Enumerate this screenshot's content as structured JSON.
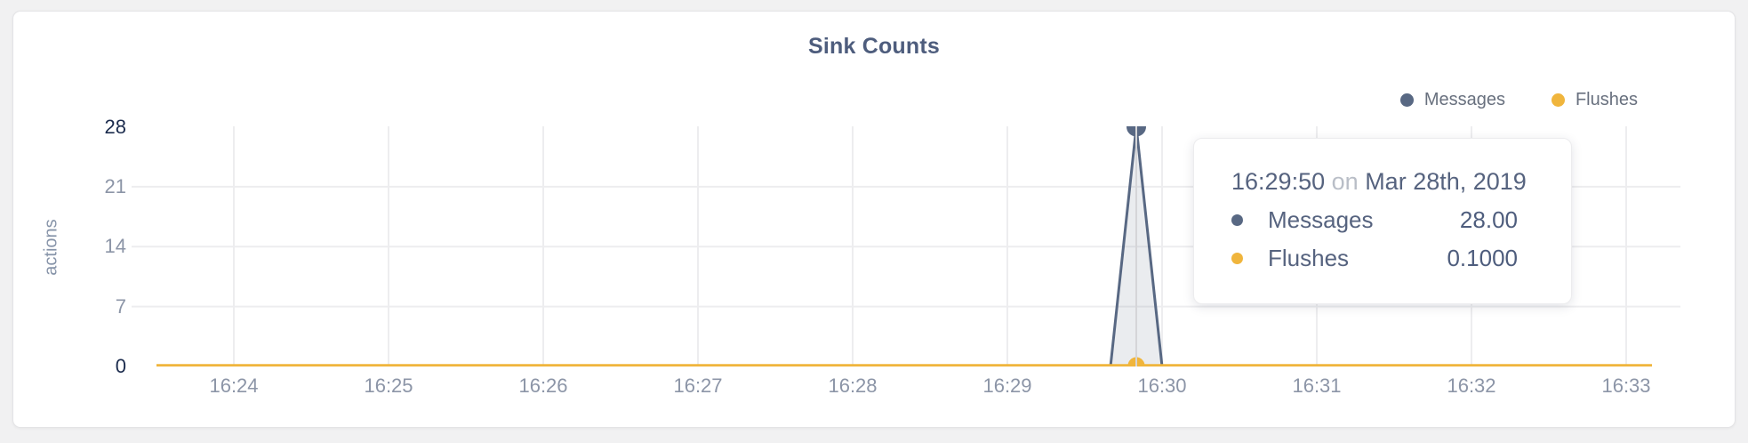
{
  "page": {
    "title": "Sink Counts"
  },
  "legend": {
    "items": [
      {
        "label": "Messages",
        "color": "#586883"
      },
      {
        "label": "Flushes",
        "color": "#F0B53C"
      }
    ]
  },
  "tooltip": {
    "time": "16:29:50",
    "connector": "on",
    "date": "Mar 28th, 2019",
    "rows": [
      {
        "label": "Messages",
        "value": "28.00",
        "color": "#586883"
      },
      {
        "label": "Flushes",
        "value": "0.1000",
        "color": "#F0B53C"
      }
    ]
  },
  "chart_data": {
    "type": "area",
    "title": "Sink Counts",
    "xlabel": "",
    "ylabel": "actions",
    "ylim": [
      0,
      28
    ],
    "y_ticks": [
      0,
      7,
      14,
      21,
      28
    ],
    "y_ticks_emphasized": [
      0,
      28
    ],
    "x_ticks": [
      "16:24",
      "16:25",
      "16:26",
      "16:27",
      "16:28",
      "16:29",
      "16:30",
      "16:31",
      "16:32",
      "16:33"
    ],
    "x_range": [
      "16:23:30",
      "16:33:10"
    ],
    "grid": true,
    "legend_position": "top-right",
    "colors": {
      "grid": "#EDEDEF",
      "crosshair": "#D5D5D8",
      "tick_strong": "#1B2B4D",
      "tick_light": "#8C95A7"
    },
    "series": [
      {
        "name": "Messages",
        "color": "#586883",
        "fill": "rgba(85,97,127,0.12)",
        "points": [
          [
            "16:23:30",
            0
          ],
          [
            "16:29:40",
            0
          ],
          [
            "16:29:50",
            28
          ],
          [
            "16:30:00",
            0
          ],
          [
            "16:33:10",
            0
          ]
        ]
      },
      {
        "name": "Flushes",
        "color": "#F0B53C",
        "fill": "none",
        "points": [
          [
            "16:23:30",
            0.1
          ],
          [
            "16:29:50",
            0.1
          ],
          [
            "16:33:10",
            0.1
          ]
        ]
      }
    ],
    "hover": {
      "time": "16:29:50",
      "markers": [
        {
          "series": "Messages",
          "value": 28
        },
        {
          "series": "Flushes",
          "value": 0.1
        }
      ]
    }
  }
}
